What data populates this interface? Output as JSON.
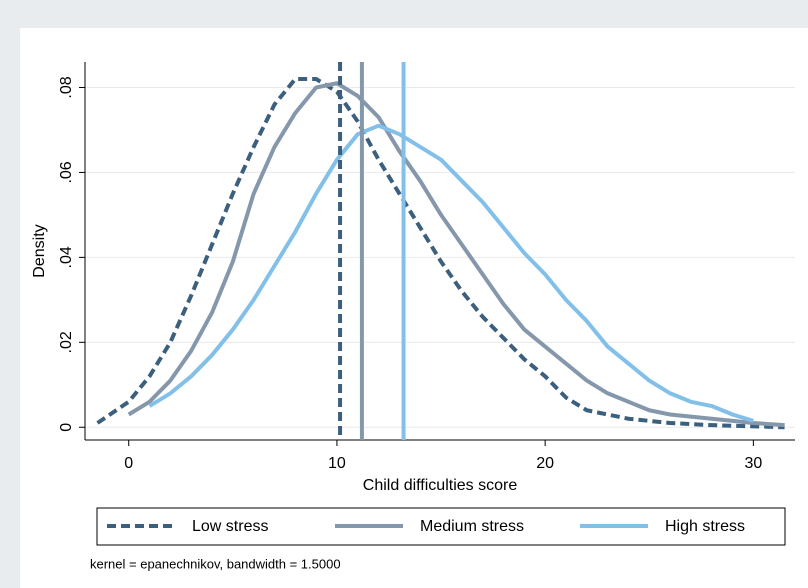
{
  "chart_data": {
    "type": "line",
    "x_label": "Child difficulties score",
    "y_label": "Density",
    "note": "kernel = epanechnikov, bandwidth = 1.5000",
    "xlim": [
      -2.1,
      32
    ],
    "ylim": [
      -0.003,
      0.086
    ],
    "xticks": [
      0,
      10,
      20,
      30
    ],
    "yticks": [
      0,
      {
        "value": 0.02,
        "label": ".02"
      },
      {
        "value": 0.04,
        "label": ".04"
      },
      {
        "value": 0.06,
        "label": ".06"
      },
      {
        "value": 0.08,
        "label": ".08"
      }
    ],
    "grid": true,
    "series": [
      {
        "name": "Low stress",
        "color": "#3b5f7d",
        "line_style": "dashed",
        "x": [
          -1.5,
          0,
          1,
          2,
          3,
          4,
          5,
          6,
          7,
          8,
          9,
          10,
          11,
          12,
          13,
          14,
          15,
          16,
          17,
          18,
          19,
          20,
          21,
          22,
          24,
          26,
          28,
          31.5
        ],
        "values": [
          0.001,
          0.006,
          0.012,
          0.02,
          0.031,
          0.043,
          0.055,
          0.066,
          0.076,
          0.082,
          0.082,
          0.079,
          0.072,
          0.063,
          0.055,
          0.047,
          0.039,
          0.032,
          0.026,
          0.021,
          0.016,
          0.012,
          0.007,
          0.004,
          0.002,
          0.001,
          0.0005,
          0
        ]
      },
      {
        "name": "Medium stress",
        "color": "#8497ab",
        "line_style": "solid",
        "x": [
          0,
          1,
          2,
          3,
          4,
          5,
          6,
          7,
          8,
          9,
          10,
          11,
          12,
          13,
          14,
          15,
          16,
          17,
          18,
          19,
          20,
          21,
          22,
          23,
          24,
          25,
          26,
          28,
          30,
          31.5
        ],
        "values": [
          0.003,
          0.006,
          0.011,
          0.018,
          0.027,
          0.039,
          0.055,
          0.066,
          0.074,
          0.08,
          0.081,
          0.078,
          0.073,
          0.065,
          0.058,
          0.05,
          0.043,
          0.036,
          0.029,
          0.023,
          0.019,
          0.015,
          0.011,
          0.008,
          0.006,
          0.004,
          0.003,
          0.002,
          0.001,
          0.0005
        ]
      },
      {
        "name": "High stress",
        "color": "#82c0ea",
        "line_style": "solid",
        "x": [
          1,
          2,
          3,
          4,
          5,
          6,
          7,
          8,
          9,
          10,
          11,
          12,
          13,
          14,
          15,
          16,
          17,
          18,
          19,
          20,
          21,
          22,
          23,
          24,
          25,
          26,
          27,
          28,
          29,
          30
        ],
        "values": [
          0.005,
          0.008,
          0.012,
          0.017,
          0.023,
          0.03,
          0.038,
          0.046,
          0.055,
          0.063,
          0.069,
          0.071,
          0.069,
          0.066,
          0.063,
          0.058,
          0.053,
          0.047,
          0.041,
          0.036,
          0.03,
          0.025,
          0.019,
          0.015,
          0.011,
          0.008,
          0.006,
          0.005,
          0.003,
          0.0015
        ]
      }
    ],
    "reference_lines": [
      {
        "value": 10.15,
        "color": "#3b5f7d",
        "line_style": "dashed"
      },
      {
        "value": 11.2,
        "color": "#8497ab",
        "line_style": "solid"
      },
      {
        "value": 13.2,
        "color": "#82c0ea",
        "line_style": "solid"
      }
    ]
  }
}
